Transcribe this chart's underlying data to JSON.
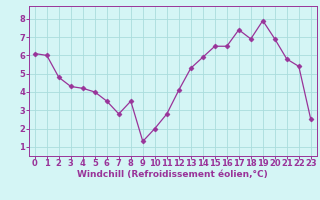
{
  "x": [
    0,
    1,
    2,
    3,
    4,
    5,
    6,
    7,
    8,
    9,
    10,
    11,
    12,
    13,
    14,
    15,
    16,
    17,
    18,
    19,
    20,
    21,
    22,
    23
  ],
  "y": [
    6.1,
    6.0,
    4.8,
    4.3,
    4.2,
    4.0,
    3.5,
    2.8,
    3.5,
    1.3,
    2.0,
    2.8,
    4.1,
    5.3,
    5.9,
    6.5,
    6.5,
    7.4,
    6.9,
    7.9,
    6.9,
    5.8,
    5.4,
    2.5
  ],
  "line_color": "#993399",
  "marker": "D",
  "markersize": 2.5,
  "linewidth": 0.9,
  "bg_color": "#d4f5f5",
  "grid_color": "#aadddd",
  "xlabel": "Windchill (Refroidissement éolien,°C)",
  "xlabel_color": "#993399",
  "xlabel_fontsize": 6.5,
  "tick_color": "#993399",
  "tick_fontsize": 6,
  "ylim": [
    0.5,
    8.7
  ],
  "yticks": [
    1,
    2,
    3,
    4,
    5,
    6,
    7,
    8
  ],
  "xticks": [
    0,
    1,
    2,
    3,
    4,
    5,
    6,
    7,
    8,
    9,
    10,
    11,
    12,
    13,
    14,
    15,
    16,
    17,
    18,
    19,
    20,
    21,
    22,
    23
  ],
  "xlim": [
    -0.5,
    23.5
  ]
}
